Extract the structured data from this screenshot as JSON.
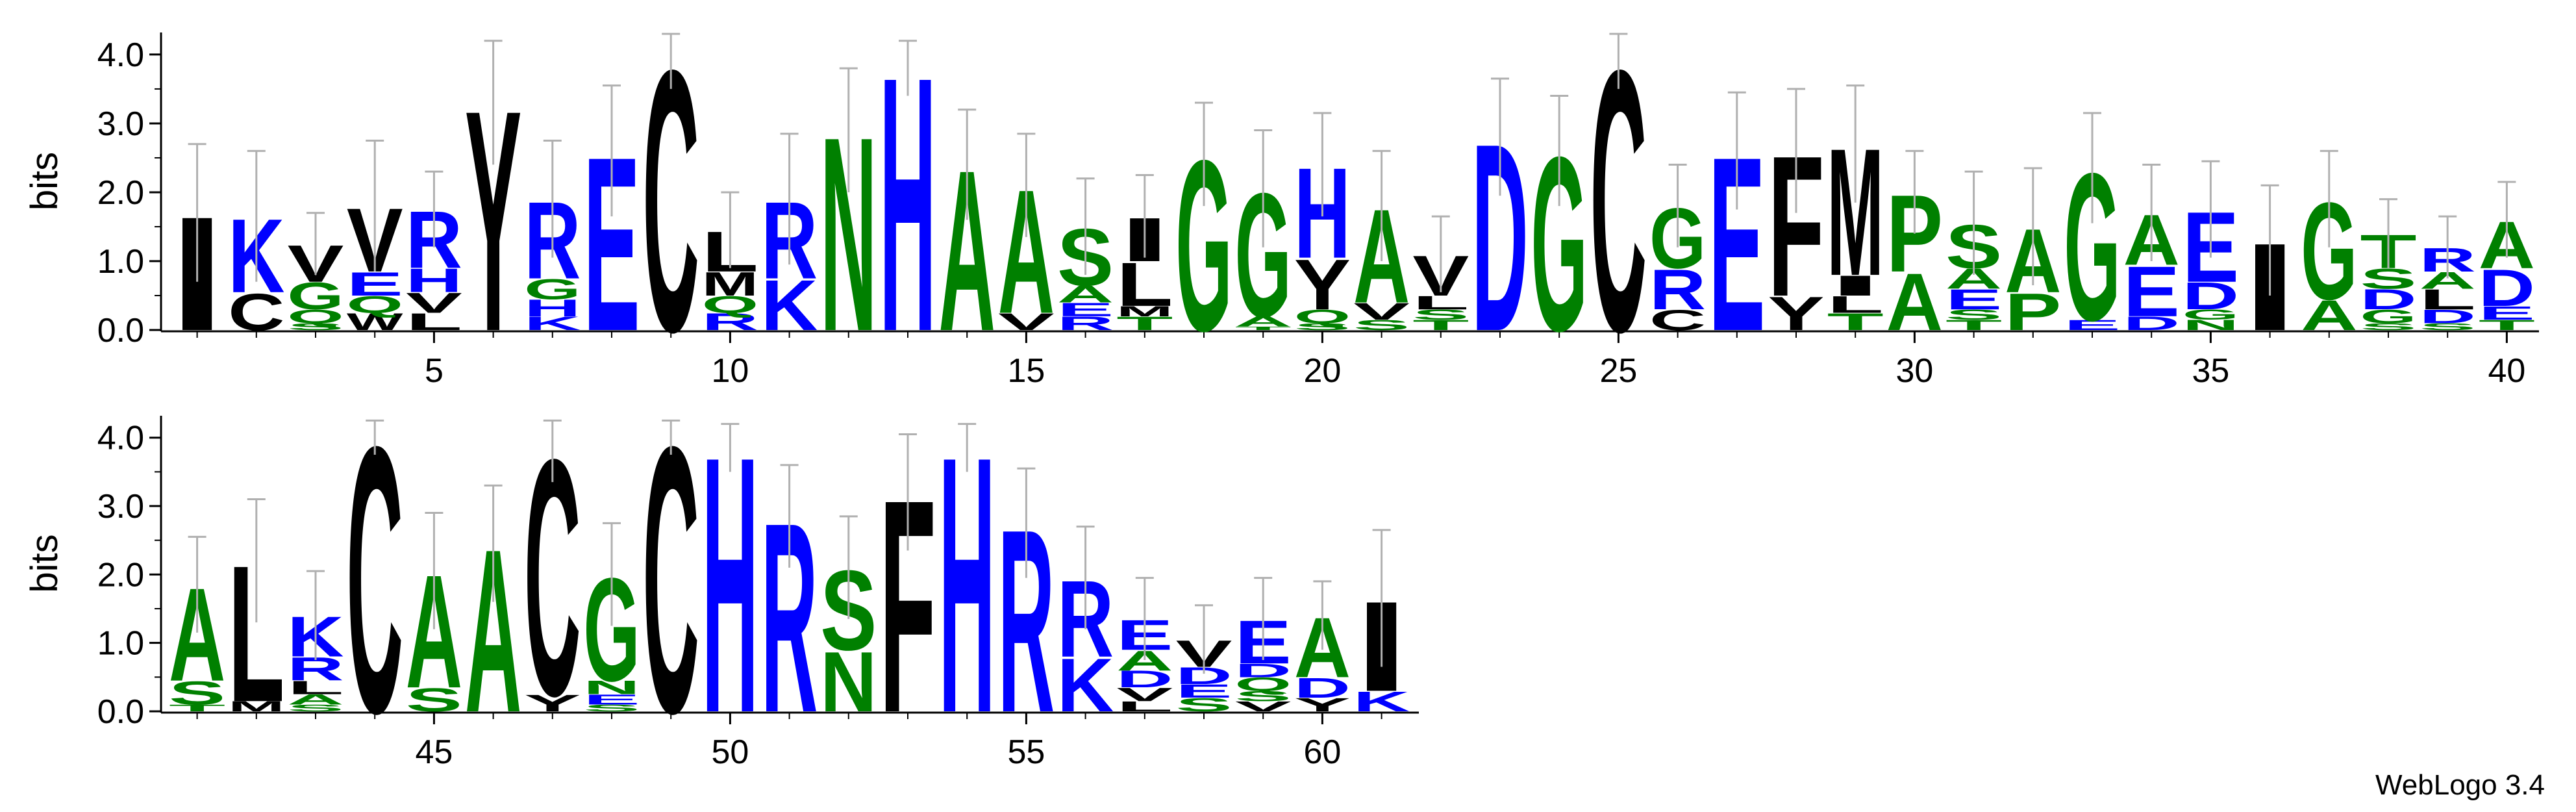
{
  "chart_data": {
    "type": "sequence-logo",
    "ylabel": "bits",
    "ylim": [
      0,
      4.32
    ],
    "yticks": [
      "0.0",
      "1.0",
      "2.0",
      "3.0",
      "4.0"
    ],
    "xtick_labels": [
      "5",
      "10",
      "15",
      "20",
      "25",
      "30",
      "35",
      "40",
      "45",
      "50",
      "55",
      "60"
    ],
    "xtick_positions": [
      5,
      10,
      15,
      20,
      25,
      30,
      35,
      40,
      45,
      50,
      55,
      60
    ],
    "rows": [
      [
        1,
        40
      ],
      [
        41,
        61
      ]
    ],
    "colors": {
      "green": "#008000",
      "blue": "#0000ff",
      "black": "#000000"
    },
    "residue_colors": {
      "A": "green",
      "C": "black",
      "D": "blue",
      "E": "blue",
      "F": "black",
      "G": "green",
      "H": "blue",
      "I": "black",
      "K": "blue",
      "L": "black",
      "M": "black",
      "N": "green",
      "P": "green",
      "Q": "green",
      "R": "blue",
      "S": "green",
      "T": "green",
      "V": "black",
      "W": "black",
      "Y": "black"
    },
    "positions": [
      {
        "pos": 1,
        "error": 1.0,
        "stack": [
          [
            "I",
            1.7
          ]
        ]
      },
      {
        "pos": 2,
        "error": 0.95,
        "stack": [
          [
            "C",
            0.55
          ],
          [
            "K",
            1.1
          ]
        ]
      },
      {
        "pos": 3,
        "error": 0.45,
        "stack": [
          [
            "S",
            0.1
          ],
          [
            "Q",
            0.2
          ],
          [
            "G",
            0.4
          ],
          [
            "V",
            0.55
          ]
        ]
      },
      {
        "pos": 4,
        "error": 0.95,
        "stack": [
          [
            "W",
            0.25
          ],
          [
            "Q",
            0.25
          ],
          [
            "E",
            0.35
          ],
          [
            "V",
            0.95
          ]
        ]
      },
      {
        "pos": 5,
        "error": 0.55,
        "stack": [
          [
            "L",
            0.25
          ],
          [
            "V",
            0.3
          ],
          [
            "H",
            0.35
          ],
          [
            "R",
            0.85
          ]
        ]
      },
      {
        "pos": 6,
        "error": 0.9,
        "stack": [
          [
            "Y",
            3.3
          ]
        ]
      },
      {
        "pos": 7,
        "error": 0.85,
        "stack": [
          [
            "K",
            0.2
          ],
          [
            "H",
            0.25
          ],
          [
            "G",
            0.3
          ],
          [
            "R",
            1.15
          ]
        ]
      },
      {
        "pos": 8,
        "error": 0.95,
        "stack": [
          [
            "E",
            2.6
          ]
        ]
      },
      {
        "pos": 9,
        "error": 0.4,
        "stack": [
          [
            "C",
            3.9
          ]
        ]
      },
      {
        "pos": 10,
        "error": 0.55,
        "stack": [
          [
            "R",
            0.25
          ],
          [
            "Q",
            0.25
          ],
          [
            "M",
            0.35
          ],
          [
            "L",
            0.6
          ]
        ]
      },
      {
        "pos": 11,
        "error": 0.95,
        "stack": [
          [
            "K",
            0.75
          ],
          [
            "R",
            1.15
          ]
        ]
      },
      {
        "pos": 12,
        "error": 0.9,
        "stack": [
          [
            "N",
            2.9
          ]
        ]
      },
      {
        "pos": 13,
        "error": 0.4,
        "stack": [
          [
            "H",
            3.8
          ]
        ]
      },
      {
        "pos": 14,
        "error": 0.8,
        "stack": [
          [
            "A",
            2.4
          ]
        ]
      },
      {
        "pos": 15,
        "error": 0.75,
        "stack": [
          [
            "V",
            0.25
          ],
          [
            "A",
            1.85
          ]
        ]
      },
      {
        "pos": 16,
        "error": 0.7,
        "stack": [
          [
            "R",
            0.2
          ],
          [
            "E",
            0.2
          ],
          [
            "A",
            0.25
          ],
          [
            "S",
            0.85
          ]
        ]
      },
      {
        "pos": 17,
        "error": 0.6,
        "stack": [
          [
            "T",
            0.2
          ],
          [
            "M",
            0.15
          ],
          [
            "L",
            0.65
          ],
          [
            "I",
            0.65
          ]
        ]
      },
      {
        "pos": 18,
        "error": 0.75,
        "stack": [
          [
            "G",
            2.55
          ]
        ]
      },
      {
        "pos": 19,
        "error": 0.85,
        "stack": [
          [
            "T",
            0.05
          ],
          [
            "A",
            0.15
          ],
          [
            "G",
            1.85
          ]
        ]
      },
      {
        "pos": 20,
        "error": 0.75,
        "stack": [
          [
            "S",
            0.1
          ],
          [
            "Q",
            0.2
          ],
          [
            "Y",
            0.75
          ],
          [
            "H",
            1.35
          ]
        ]
      },
      {
        "pos": 21,
        "error": 0.8,
        "stack": [
          [
            "S",
            0.15
          ],
          [
            "V",
            0.25
          ],
          [
            "A",
            1.4
          ]
        ]
      },
      {
        "pos": 22,
        "error": 0.55,
        "stack": [
          [
            "T",
            0.15
          ],
          [
            "S",
            0.15
          ],
          [
            "L",
            0.2
          ],
          [
            "V",
            0.6
          ]
        ]
      },
      {
        "pos": 23,
        "error": 0.85,
        "stack": [
          [
            "D",
            2.8
          ]
        ]
      },
      {
        "pos": 24,
        "error": 0.8,
        "stack": [
          [
            "G",
            2.6
          ]
        ]
      },
      {
        "pos": 25,
        "error": 0.4,
        "stack": [
          [
            "C",
            3.9
          ]
        ]
      },
      {
        "pos": 26,
        "error": 0.6,
        "stack": [
          [
            "C",
            0.3
          ],
          [
            "R",
            0.6
          ],
          [
            "G",
            0.9
          ]
        ]
      },
      {
        "pos": 27,
        "error": 0.85,
        "stack": [
          [
            "E",
            2.6
          ]
        ]
      },
      {
        "pos": 28,
        "error": 0.9,
        "stack": [
          [
            "Y",
            0.5
          ],
          [
            "F",
            2.1
          ]
        ]
      },
      {
        "pos": 29,
        "error": 0.85,
        "stack": [
          [
            "T",
            0.25
          ],
          [
            "L",
            0.25
          ],
          [
            "I",
            0.3
          ],
          [
            "M",
            1.9
          ]
        ]
      },
      {
        "pos": 30,
        "error": 0.6,
        "stack": [
          [
            "A",
            0.85
          ],
          [
            "P",
            1.15
          ]
        ]
      },
      {
        "pos": 31,
        "error": 0.75,
        "stack": [
          [
            "T",
            0.15
          ],
          [
            "S",
            0.15
          ],
          [
            "E",
            0.3
          ],
          [
            "A",
            0.3
          ],
          [
            "S",
            0.65
          ]
        ]
      },
      {
        "pos": 32,
        "error": 0.85,
        "stack": [
          [
            "P",
            0.55
          ],
          [
            "A",
            0.95
          ]
        ]
      },
      {
        "pos": 33,
        "error": 0.8,
        "stack": [
          [
            "E",
            0.15
          ],
          [
            "G",
            2.2
          ]
        ]
      },
      {
        "pos": 34,
        "error": 0.7,
        "stack": [
          [
            "D",
            0.2
          ],
          [
            "E",
            0.75
          ],
          [
            "A",
            0.75
          ]
        ]
      },
      {
        "pos": 35,
        "error": 0.7,
        "stack": [
          [
            "N",
            0.15
          ],
          [
            "G",
            0.15
          ],
          [
            "D",
            0.4
          ],
          [
            "E",
            1.05
          ]
        ]
      },
      {
        "pos": 36,
        "error": 0.8,
        "stack": [
          [
            "I",
            1.3
          ]
        ]
      },
      {
        "pos": 37,
        "error": 0.7,
        "stack": [
          [
            "A",
            0.45
          ],
          [
            "G",
            1.45
          ]
        ]
      },
      {
        "pos": 38,
        "error": 0.5,
        "stack": [
          [
            "S",
            0.1
          ],
          [
            "G",
            0.2
          ],
          [
            "D",
            0.3
          ],
          [
            "S",
            0.3
          ],
          [
            "T",
            0.5
          ]
        ]
      },
      {
        "pos": 39,
        "error": 0.45,
        "stack": [
          [
            "S",
            0.1
          ],
          [
            "D",
            0.2
          ],
          [
            "L",
            0.3
          ],
          [
            "A",
            0.25
          ],
          [
            "R",
            0.35
          ]
        ]
      },
      {
        "pos": 40,
        "error": 0.55,
        "stack": [
          [
            "T",
            0.15
          ],
          [
            "E",
            0.2
          ],
          [
            "D",
            0.55
          ],
          [
            "A",
            0.7
          ]
        ]
      },
      {
        "pos": 41,
        "error": 0.7,
        "stack": [
          [
            "T",
            0.1
          ],
          [
            "S",
            0.35
          ],
          [
            "A",
            1.4
          ]
        ]
      },
      {
        "pos": 42,
        "error": 0.9,
        "stack": [
          [
            "M",
            0.15
          ],
          [
            "L",
            2.05
          ]
        ]
      },
      {
        "pos": 43,
        "error": 0.65,
        "stack": [
          [
            "S",
            0.1
          ],
          [
            "A",
            0.15
          ],
          [
            "L",
            0.2
          ],
          [
            "R",
            0.35
          ],
          [
            "K",
            0.6
          ]
        ]
      },
      {
        "pos": 44,
        "error": 0.25,
        "stack": [
          [
            "C",
            4.0
          ]
        ]
      },
      {
        "pos": 45,
        "error": 0.85,
        "stack": [
          [
            "S",
            0.35
          ],
          [
            "A",
            1.7
          ]
        ]
      },
      {
        "pos": 46,
        "error": 0.85,
        "stack": [
          [
            "A",
            2.45
          ]
        ]
      },
      {
        "pos": 47,
        "error": 0.45,
        "stack": [
          [
            "Y",
            0.25
          ],
          [
            "C",
            3.55
          ]
        ]
      },
      {
        "pos": 48,
        "error": 0.75,
        "stack": [
          [
            "S",
            0.1
          ],
          [
            "E",
            0.15
          ],
          [
            "N",
            0.2
          ],
          [
            "G",
            1.55
          ]
        ]
      },
      {
        "pos": 49,
        "error": 0.25,
        "stack": [
          [
            "C",
            4.0
          ]
        ]
      },
      {
        "pos": 50,
        "error": 0.35,
        "stack": [
          [
            "H",
            3.85
          ]
        ]
      },
      {
        "pos": 51,
        "error": 0.75,
        "stack": [
          [
            "R",
            2.85
          ]
        ]
      },
      {
        "pos": 52,
        "error": 0.75,
        "stack": [
          [
            "N",
            0.9
          ],
          [
            "S",
            1.2
          ]
        ]
      },
      {
        "pos": 53,
        "error": 0.85,
        "stack": [
          [
            "F",
            3.2
          ]
        ]
      },
      {
        "pos": 54,
        "error": 0.35,
        "stack": [
          [
            "H",
            3.85
          ]
        ]
      },
      {
        "pos": 55,
        "error": 0.8,
        "stack": [
          [
            "R",
            2.75
          ]
        ]
      },
      {
        "pos": 56,
        "error": 0.75,
        "stack": [
          [
            "K",
            0.8
          ],
          [
            "R",
            1.15
          ]
        ]
      },
      {
        "pos": 57,
        "error": 0.6,
        "stack": [
          [
            "L",
            0.15
          ],
          [
            "V",
            0.2
          ],
          [
            "D",
            0.25
          ],
          [
            "A",
            0.3
          ],
          [
            "E",
            0.45
          ]
        ]
      },
      {
        "pos": 58,
        "error": 0.5,
        "stack": [
          [
            "S",
            0.2
          ],
          [
            "E",
            0.2
          ],
          [
            "D",
            0.25
          ],
          [
            "V",
            0.4
          ]
        ]
      },
      {
        "pos": 59,
        "error": 0.6,
        "stack": [
          [
            "V",
            0.15
          ],
          [
            "S",
            0.15
          ],
          [
            "Q",
            0.2
          ],
          [
            "D",
            0.2
          ],
          [
            "E",
            0.65
          ]
        ]
      },
      {
        "pos": 60,
        "error": 0.5,
        "stack": [
          [
            "Y",
            0.2
          ],
          [
            "D",
            0.3
          ],
          [
            "A",
            0.9
          ]
        ]
      },
      {
        "pos": 61,
        "error": 1.0,
        "stack": [
          [
            "K",
            0.3
          ],
          [
            "I",
            1.35
          ]
        ]
      }
    ]
  },
  "credit": "WebLogo 3.4"
}
